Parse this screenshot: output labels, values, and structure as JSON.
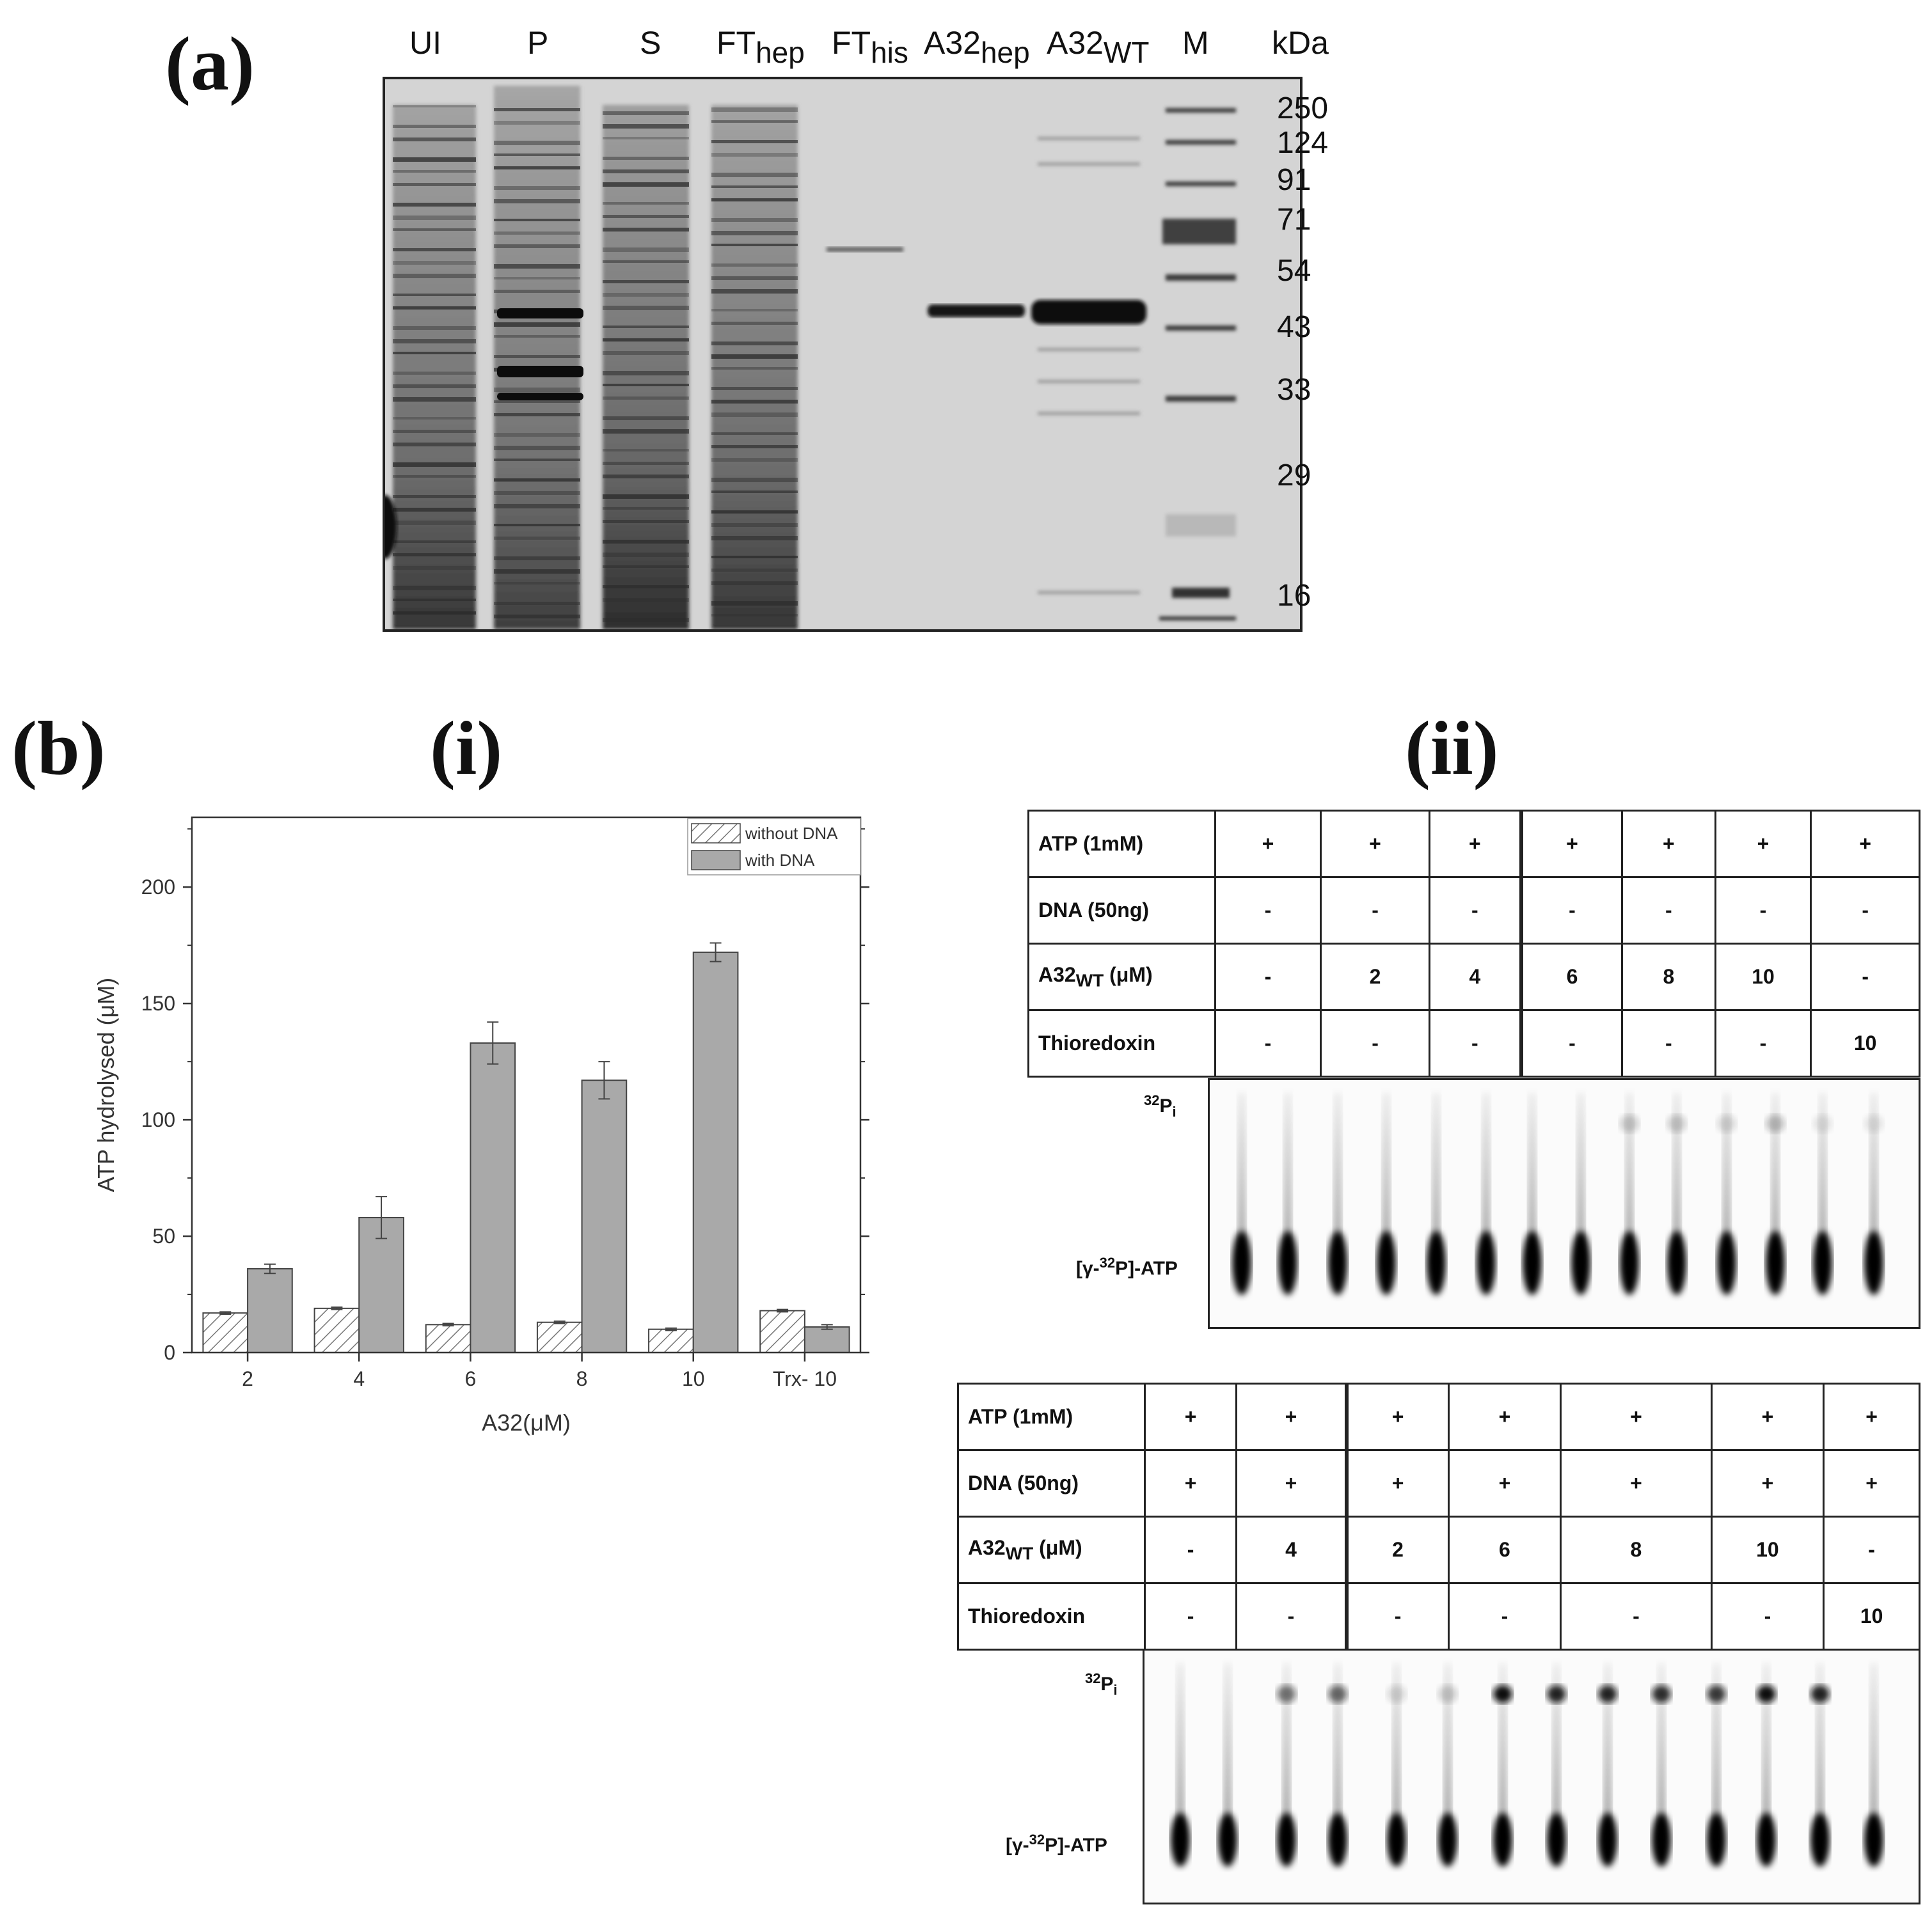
{
  "panel_a": {
    "letter": "(a)",
    "lanes": [
      {
        "label": "UI",
        "sub": ""
      },
      {
        "label": "P",
        "sub": ""
      },
      {
        "label": "S",
        "sub": ""
      },
      {
        "label": "FT",
        "sub": "hep"
      },
      {
        "label": "FT",
        "sub": "his"
      },
      {
        "label": "A32",
        "sub": "hep"
      },
      {
        "label": "A32",
        "sub": "WT"
      },
      {
        "label": "M",
        "sub": ""
      }
    ],
    "unit": "kDa",
    "markers": [
      "250",
      "124",
      "91",
      "71",
      "54",
      "43",
      "33",
      "29",
      "16"
    ]
  },
  "panel_b": {
    "letter": "(b)",
    "sub_i": "(i)",
    "sub_ii": "(ii)"
  },
  "chart_data": {
    "type": "bar",
    "categories": [
      "2",
      "4",
      "6",
      "8",
      "10",
      "Trx- 10"
    ],
    "series": [
      {
        "name": "without DNA",
        "values": [
          17,
          19,
          12,
          13,
          10,
          18
        ],
        "errors": [
          0.5,
          0.5,
          0.5,
          0.5,
          0.5,
          0.5
        ],
        "pattern": "hatched"
      },
      {
        "name": "with DNA",
        "values": [
          36,
          58,
          133,
          117,
          172,
          11
        ],
        "errors": [
          2,
          9,
          9,
          8,
          4,
          1
        ],
        "color": "#a9a9a9"
      }
    ],
    "xlabel": "A32(μM)",
    "ylabel": "ATP hydrolysed (μM)",
    "ylim": [
      0,
      230
    ],
    "yticks": [
      "0",
      "50",
      "100",
      "150",
      "200"
    ],
    "legend_position": "top-right"
  },
  "table_top": {
    "row_labels": [
      "ATP (1mM)",
      "DNA (50ng)",
      "A32",
      "Thioredoxin"
    ],
    "a32_sub": "WT",
    "a32_unit": " (μM)",
    "rows": [
      [
        "+",
        "+",
        "+",
        "+",
        "+",
        "+",
        "+"
      ],
      [
        "-",
        "-",
        "-",
        "-",
        "-",
        "-",
        "-"
      ],
      [
        "-",
        "2",
        "4",
        "6",
        "8",
        "10",
        "-"
      ],
      [
        "-",
        "-",
        "-",
        "-",
        "-",
        "-",
        "10"
      ]
    ]
  },
  "table_bottom": {
    "row_labels": [
      "ATP (1mM)",
      "DNA (50ng)",
      "A32",
      "Thioredoxin"
    ],
    "a32_sub": "WT",
    "a32_unit": " (μM)",
    "rows": [
      [
        "+",
        "+",
        "+",
        "+",
        "+",
        "+",
        "+"
      ],
      [
        "+",
        "+",
        "+",
        "+",
        "+",
        "+",
        "+"
      ],
      [
        "-",
        "4",
        "2",
        "6",
        "8",
        "10",
        "-"
      ],
      [
        "-",
        "-",
        "-",
        "-",
        "-",
        "-",
        "10"
      ]
    ]
  },
  "tlc_labels": {
    "pi_sup": "32",
    "pi_base": "P",
    "pi_sub": "i",
    "atp_pre": "[γ-",
    "atp_sup": "32",
    "atp_post": "P]-ATP"
  }
}
